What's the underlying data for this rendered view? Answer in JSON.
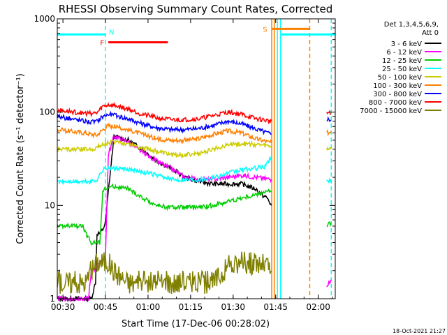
{
  "chart_data": {
    "type": "line",
    "title": "RHESSI Observing Summary Count Rates, Corrected",
    "xlabel": "Start Time (17-Dec-06 00:28:02)",
    "ylabel": "Corrected Count Rate (s⁻¹ detector⁻¹)",
    "yscale": "log",
    "ylim": [
      1,
      1000
    ],
    "xlim_minutes": [
      0,
      98
    ],
    "grid": false,
    "legend_position": "right",
    "x_ticks": [
      {
        "label": "00:30",
        "t": 2
      },
      {
        "label": "00:45",
        "t": 17
      },
      {
        "label": "01:00",
        "t": 32
      },
      {
        "label": "01:15",
        "t": 47
      },
      {
        "label": "01:30",
        "t": 62
      },
      {
        "label": "01:45",
        "t": 77
      },
      {
        "label": "02:00",
        "t": 92
      }
    ],
    "y_ticks": [
      {
        "label": "1",
        "value": 1
      },
      {
        "label": "10",
        "value": 10
      },
      {
        "label": "100",
        "value": 100
      },
      {
        "label": "1000",
        "value": 1000
      }
    ],
    "legend_header": [
      "Det 1,3,4,5,6,9,",
      "Att 0"
    ],
    "series": [
      {
        "name": "3 - 6 keV",
        "color": "#000000",
        "segments": [
          {
            "x": [
              0,
              12,
              13.5,
              14,
              15,
              16,
              17,
              18,
              20,
              25,
              30,
              35,
              40,
              45,
              50,
              55,
              60,
              65,
              70,
              72,
              74,
              75.5
            ],
            "y": [
              1,
              1,
              1.5,
              5,
              5,
              5.5,
              6.5,
              14,
              55,
              50,
              40,
              30,
              25,
              20,
              18,
              17,
              17,
              17,
              15,
              13,
              12,
              10
            ]
          }
        ]
      },
      {
        "name": "6 - 12 keV",
        "color": "#ff00ff",
        "segments": [
          {
            "x": [
              0,
              11,
              12,
              13,
              14,
              16,
              17,
              18,
              20,
              25,
              30,
              35,
              40,
              45,
              50,
              55,
              60,
              65,
              70,
              75.5
            ],
            "y": [
              1,
              1,
              2,
              2,
              2.4,
              2.5,
              3,
              35,
              55,
              48,
              37,
              30,
              25,
              20,
              19,
              19,
              20,
              21,
              20,
              19
            ]
          },
          {
            "x": [
              95,
              96.5
            ],
            "y": [
              1.4,
              1.6
            ]
          }
        ]
      },
      {
        "name": "12 - 25 keV",
        "color": "#00cc00",
        "segments": [
          {
            "x": [
              0,
              9,
              10,
              12,
              14,
              15,
              16,
              17,
              20,
              25,
              30,
              35,
              40,
              45,
              50,
              55,
              60,
              65,
              70,
              73,
              75.5
            ],
            "y": [
              6,
              6,
              5,
              4,
              4,
              4,
              14,
              15,
              16,
              15,
              12,
              10,
              9.5,
              9.5,
              9.5,
              10,
              11,
              12,
              13,
              14,
              14
            ]
          },
          {
            "x": [
              95,
              96.5
            ],
            "y": [
              6,
              6.5
            ]
          }
        ]
      },
      {
        "name": "25 - 50 keV",
        "color": "#00ffff",
        "segments": [
          {
            "x": [
              0,
              10,
              12,
              14,
              16,
              17,
              18,
              20,
              25,
              30,
              35,
              40,
              45,
              50,
              55,
              60,
              65,
              70,
              73,
              75.5
            ],
            "y": [
              18,
              18,
              18,
              19,
              24,
              25,
              25,
              25,
              24,
              23,
              21,
              19,
              19,
              19,
              20,
              22,
              24,
              25,
              26,
              33
            ]
          },
          {
            "x": [
              95,
              96.5
            ],
            "y": [
              18,
              19
            ]
          }
        ]
      },
      {
        "name": "50 - 100 keV",
        "color": "#cccc00",
        "segments": [
          {
            "x": [
              0,
              10,
              12,
              14,
              16,
              18,
              20,
              25,
              30,
              35,
              40,
              45,
              50,
              55,
              60,
              65,
              70,
              75.5
            ],
            "y": [
              40,
              40,
              40,
              42,
              45,
              47,
              48,
              46,
              42,
              38,
              35,
              35,
              36,
              40,
              45,
              46,
              45,
              43
            ]
          },
          {
            "x": [
              95,
              96.5
            ],
            "y": [
              40,
              42
            ]
          }
        ]
      },
      {
        "name": "100 - 300 keV",
        "color": "#ff7f00",
        "segments": [
          {
            "x": [
              0,
              10,
              12,
              14,
              16,
              18,
              20,
              25,
              30,
              35,
              40,
              45,
              50,
              55,
              60,
              65,
              70,
              75.5
            ],
            "y": [
              65,
              60,
              58,
              57,
              65,
              72,
              70,
              65,
              58,
              52,
              50,
              50,
              52,
              58,
              63,
              60,
              52,
              47
            ]
          },
          {
            "x": [
              95,
              96.5
            ],
            "y": [
              60,
              62
            ]
          }
        ]
      },
      {
        "name": "300 - 800 keV",
        "color": "#0000ff",
        "segments": [
          {
            "x": [
              0,
              10,
              12,
              14,
              16,
              18,
              20,
              25,
              30,
              35,
              40,
              45,
              50,
              55,
              60,
              65,
              70,
              75.5
            ],
            "y": [
              90,
              80,
              78,
              80,
              90,
              95,
              93,
              85,
              75,
              68,
              65,
              65,
              67,
              72,
              80,
              75,
              66,
              58
            ]
          },
          {
            "x": [
              95,
              96.5
            ],
            "y": [
              85,
              82
            ]
          }
        ]
      },
      {
        "name": "800 - 7000 keV",
        "color": "#ff0000",
        "segments": [
          {
            "x": [
              0,
              10,
              12,
              14,
              16,
              18,
              20,
              25,
              30,
              35,
              40,
              45,
              50,
              55,
              60,
              65,
              70,
              75.5
            ],
            "y": [
              105,
              97,
              97,
              98,
              115,
              120,
              118,
              108,
              95,
              87,
              83,
              83,
              85,
              92,
              100,
              95,
              85,
              80
            ]
          },
          {
            "x": [
              95,
              96.5
            ],
            "y": [
              100,
              95
            ]
          }
        ]
      },
      {
        "name": "7000 - 15000 keV",
        "color": "#808000",
        "segments": [
          {
            "x": [
              0,
              10,
              12,
              14,
              16,
              18,
              20,
              25,
              30,
              35,
              40,
              45,
              50,
              55,
              60,
              65,
              70,
              74,
              75.5
            ],
            "y": [
              1.5,
              1.5,
              2,
              2.5,
              2.5,
              2.5,
              2,
              1.5,
              1.5,
              1.5,
              1.5,
              1.5,
              1.5,
              1.5,
              2.2,
              2.4,
              2.4,
              2.3,
              2
            ]
          }
        ]
      }
    ],
    "flag_bars": [
      {
        "label": "N",
        "color": "#00ffff",
        "y": 680,
        "segments": [
          [
            0,
            17
          ],
          [
            79,
            98
          ]
        ]
      },
      {
        "label": "F",
        "color": "#ff0000",
        "y": 560,
        "segments": [
          [
            18,
            39
          ]
        ]
      },
      {
        "label": "S",
        "color": "#ff7f00",
        "y": 780,
        "segments": [
          [
            75.5,
            89
          ]
        ]
      }
    ],
    "vlines": [
      {
        "t": 17,
        "color": "#00ffff",
        "style": "dashed"
      },
      {
        "t": 75.6,
        "color": "#ff7f00",
        "style": "solid"
      },
      {
        "t": 76.5,
        "color": "#ff7f00",
        "style": "solid"
      },
      {
        "t": 77.6,
        "color": "#00ffff",
        "style": "solid"
      },
      {
        "t": 78.7,
        "color": "#00ffff",
        "style": "solid"
      },
      {
        "t": 89,
        "color": "#ff7f00",
        "style": "dashed"
      },
      {
        "t": 96.6,
        "color": "#00ffff",
        "style": "dashed"
      }
    ],
    "timestamp": "18-Oct-2021 21:27"
  }
}
